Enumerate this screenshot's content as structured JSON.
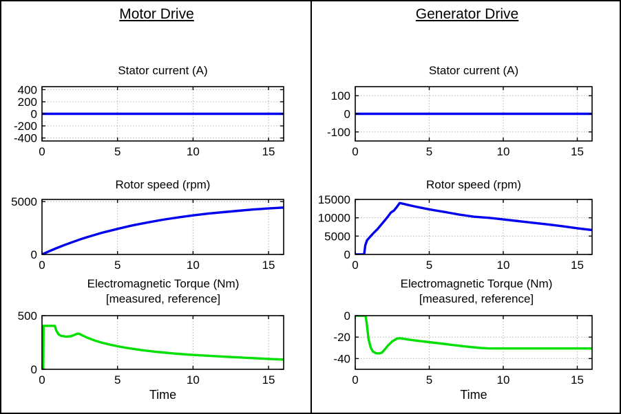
{
  "panels": [
    {
      "title": "Motor Drive"
    },
    {
      "title": "Generator Drive"
    }
  ],
  "chart_data": [
    {
      "id": "motor-stator-current",
      "panel": "Motor Drive",
      "type": "line",
      "title": "Stator current (A)",
      "xlabel": "",
      "xlim": [
        0,
        16
      ],
      "ylim": [
        -450,
        450
      ],
      "xticks": [
        0,
        5,
        10,
        15
      ],
      "yticks": [
        400,
        200,
        0,
        -200,
        -400
      ],
      "grid": true,
      "line_color": "#0000EE",
      "x": [
        0,
        16
      ],
      "y": [
        0,
        0
      ]
    },
    {
      "id": "motor-rotor-speed",
      "panel": "Motor Drive",
      "type": "line",
      "title": "Rotor speed (rpm)",
      "xlabel": "",
      "xlim": [
        0,
        16
      ],
      "ylim": [
        0,
        5200
      ],
      "xticks": [
        0,
        5,
        10,
        15
      ],
      "yticks": [
        0,
        5000
      ],
      "grid": true,
      "line_color": "#0000EE",
      "x": [
        0,
        0.5,
        1,
        1.5,
        2,
        2.5,
        3,
        3.5,
        4,
        5,
        6,
        7,
        8,
        9,
        10,
        11,
        12,
        13,
        14,
        15,
        16
      ],
      "y": [
        0,
        320,
        620,
        900,
        1160,
        1410,
        1640,
        1850,
        2060,
        2420,
        2750,
        3030,
        3280,
        3500,
        3690,
        3860,
        4000,
        4130,
        4250,
        4350,
        4430
      ]
    },
    {
      "id": "motor-electromagnetic-torque",
      "panel": "Motor Drive",
      "type": "line",
      "title": "Electromagnetic Torque (Nm)",
      "title2": "[measured, reference]",
      "xlabel": "Time",
      "xlim": [
        0,
        16
      ],
      "ylim": [
        0,
        500
      ],
      "xticks": [
        0,
        5,
        10,
        15
      ],
      "yticks": [
        0,
        500
      ],
      "grid": true,
      "line_color": "#00DF00",
      "x": [
        0,
        0.08,
        0.1,
        0.85,
        0.95,
        1.1,
        1.3,
        1.6,
        1.9,
        2.1,
        2.3,
        2.45,
        2.6,
        2.8,
        3,
        3.5,
        4,
        4.5,
        5,
        5.5,
        6,
        6.5,
        7,
        7.5,
        8,
        8.5,
        9,
        9.5,
        10,
        11,
        12,
        13,
        14,
        15,
        16
      ],
      "y": [
        0,
        0,
        405,
        405,
        360,
        325,
        310,
        305,
        308,
        318,
        330,
        332,
        322,
        308,
        295,
        268,
        247,
        230,
        215,
        202,
        191,
        181,
        172,
        164,
        157,
        150,
        144,
        139,
        134,
        126,
        118,
        111,
        104,
        97,
        91
      ]
    },
    {
      "id": "generator-stator-current",
      "panel": "Generator Drive",
      "type": "line",
      "title": "Stator current (A)",
      "xlabel": "",
      "xlim": [
        0,
        16
      ],
      "ylim": [
        -150,
        150
      ],
      "xticks": [
        0,
        5,
        10,
        15
      ],
      "yticks": [
        100,
        0,
        -100
      ],
      "grid": true,
      "line_color": "#0000EE",
      "x": [
        0,
        16
      ],
      "y": [
        0,
        0
      ]
    },
    {
      "id": "generator-rotor-speed",
      "panel": "Generator Drive",
      "type": "line",
      "title": "Rotor speed (rpm)",
      "xlabel": "",
      "xlim": [
        0,
        16
      ],
      "ylim": [
        0,
        15000
      ],
      "xticks": [
        0,
        5,
        10,
        15
      ],
      "yticks": [
        0,
        5000,
        10000,
        15000
      ],
      "grid": true,
      "line_color": "#0000EE",
      "x": [
        0,
        0.6,
        0.68,
        0.8,
        1,
        1.25,
        1.5,
        1.75,
        2,
        2.2,
        2.4,
        2.5,
        2.6,
        2.8,
        3,
        3.2,
        3.5,
        4,
        4.5,
        5,
        5.5,
        6,
        6.5,
        7,
        7.5,
        8,
        8.5,
        9,
        9.5,
        10,
        11,
        12,
        13,
        14,
        15,
        16
      ],
      "y": [
        0,
        0,
        2500,
        3900,
        4800,
        5900,
        6900,
        8100,
        9300,
        10300,
        11400,
        11700,
        11900,
        12900,
        14000,
        13850,
        13550,
        13100,
        12700,
        12300,
        11950,
        11600,
        11250,
        10900,
        10600,
        10300,
        10150,
        10000,
        9780,
        9550,
        9100,
        8650,
        8200,
        7700,
        7150,
        6650
      ]
    },
    {
      "id": "generator-electromagnetic-torque",
      "panel": "Generator Drive",
      "type": "line",
      "title": "Electromagnetic Torque (Nm)",
      "title2": "[measured, reference]",
      "xlabel": "Time",
      "xlim": [
        0,
        16
      ],
      "ylim": [
        -50,
        0
      ],
      "xticks": [
        0,
        5,
        10,
        15
      ],
      "yticks": [
        0,
        -20,
        -40
      ],
      "grid": true,
      "line_color": "#00DF00",
      "x": [
        0,
        0.7,
        0.78,
        0.9,
        1.05,
        1.2,
        1.4,
        1.6,
        1.8,
        2,
        2.2,
        2.5,
        2.8,
        3,
        3.3,
        3.6,
        4,
        4.5,
        5,
        5.5,
        6,
        6.5,
        7,
        7.5,
        8,
        8.5,
        9,
        9.5,
        10,
        11,
        12,
        13,
        14,
        15,
        16
      ],
      "y": [
        0,
        0,
        -8,
        -22,
        -30,
        -33.5,
        -35,
        -35.2,
        -34.5,
        -31.5,
        -28,
        -24,
        -21.5,
        -21,
        -21.6,
        -22.3,
        -23,
        -23.9,
        -24.7,
        -25.5,
        -26.3,
        -27.2,
        -28,
        -28.8,
        -29.5,
        -30.1,
        -30.5,
        -30.6,
        -30.6,
        -30.6,
        -30.6,
        -30.6,
        -30.6,
        -30.6,
        -30.6
      ]
    }
  ]
}
